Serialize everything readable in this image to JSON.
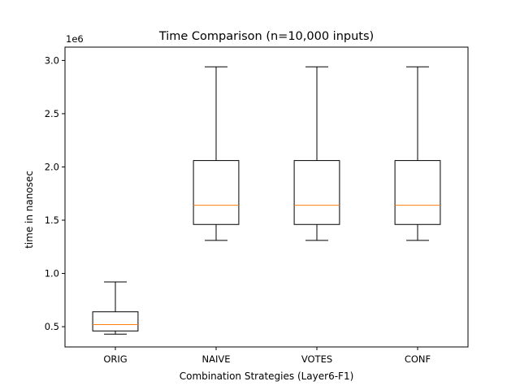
{
  "chart_data": {
    "type": "box",
    "title": "Time Comparison (n=10,000 inputs)",
    "xlabel": "Combination Strategies (Layer6-F1)",
    "ylabel": "time in nanosec",
    "y_offset_label": "1e6",
    "ylim": [
      310000,
      3125000
    ],
    "y_ticks": [
      500000,
      1000000,
      1500000,
      2000000,
      2500000,
      3000000
    ],
    "y_tick_labels": [
      "0.5",
      "1.0",
      "1.5",
      "2.0",
      "2.5",
      "3.0"
    ],
    "categories": [
      "ORIG",
      "NAIVE",
      "VOTES",
      "CONF"
    ],
    "boxes": [
      {
        "category": "ORIG",
        "whisker_low": 430000,
        "q1": 460000,
        "median": 520000,
        "q3": 640000,
        "whisker_high": 920000
      },
      {
        "category": "NAIVE",
        "whisker_low": 1310000,
        "q1": 1460000,
        "median": 1640000,
        "q3": 2060000,
        "whisker_high": 2940000
      },
      {
        "category": "VOTES",
        "whisker_low": 1310000,
        "q1": 1460000,
        "median": 1640000,
        "q3": 2060000,
        "whisker_high": 2940000
      },
      {
        "category": "CONF",
        "whisker_low": 1310000,
        "q1": 1460000,
        "median": 1640000,
        "q3": 2060000,
        "whisker_high": 2940000
      }
    ],
    "grid": false,
    "colors": {
      "box": "#000000",
      "median": "#ff7f0e"
    }
  }
}
